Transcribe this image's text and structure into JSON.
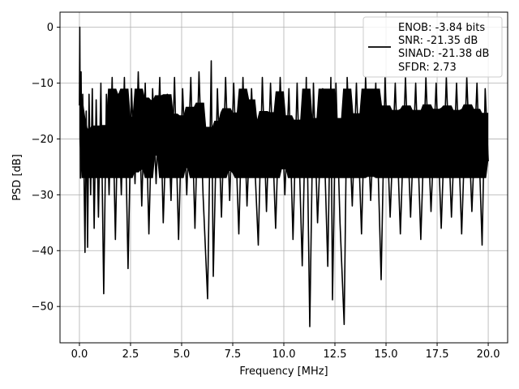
{
  "chart_data": {
    "type": "line",
    "xlabel": "Frequency [MHz]",
    "ylabel": "PSD [dB]",
    "xlim": [
      -0.95,
      20.95
    ],
    "ylim": [
      -56.5,
      2.7
    ],
    "x_ticks": [
      0.0,
      2.5,
      5.0,
      7.5,
      10.0,
      12.5,
      15.0,
      17.5,
      20.0
    ],
    "x_tick_labels": [
      "0.0",
      "2.5",
      "5.0",
      "7.5",
      "10.0",
      "12.5",
      "15.0",
      "17.5",
      "20.0"
    ],
    "y_ticks": [
      0,
      -10,
      -20,
      -30,
      -40,
      -50
    ],
    "y_tick_labels": [
      "0",
      "−10",
      "−20",
      "−30",
      "−40",
      "−50"
    ],
    "grid": true,
    "legend_position": "upper-right",
    "legend_lines": [
      "ENOB: -3.84 bits",
      "SNR: -21.35 dB",
      "SINAD: -21.38 dB",
      "SFDR: 2.73"
    ],
    "line_color": "#000000",
    "series": [
      {
        "points": [
          [
            0.0,
            -14.0
          ],
          [
            0.02,
            0.0
          ],
          [
            0.05,
            -27.0
          ],
          [
            0.08,
            -8.0
          ],
          [
            0.12,
            -25.0
          ],
          [
            0.16,
            -12.0
          ],
          [
            0.21,
            -22.0
          ],
          [
            0.27,
            -40.3
          ],
          [
            0.33,
            -15.0
          ],
          [
            0.4,
            -39.4
          ],
          [
            0.47,
            -12.0
          ],
          [
            0.55,
            -30.0
          ],
          [
            0.63,
            -11.0
          ],
          [
            0.72,
            -36.0
          ],
          [
            0.82,
            -13.0
          ],
          [
            0.93,
            -34.0
          ],
          [
            1.05,
            -10.0
          ],
          [
            1.19,
            -47.7
          ],
          [
            1.32,
            -12.0
          ],
          [
            1.45,
            -30.0
          ],
          [
            1.6,
            -9.0
          ],
          [
            1.76,
            -38.0
          ],
          [
            1.9,
            -12.0
          ],
          [
            2.05,
            -30.0
          ],
          [
            2.2,
            -9.0
          ],
          [
            2.38,
            -43.2
          ],
          [
            2.55,
            -11.0
          ],
          [
            2.72,
            -28.0
          ],
          [
            2.88,
            -8.0
          ],
          [
            3.05,
            -32.0
          ],
          [
            3.22,
            -10.0
          ],
          [
            3.4,
            -37.0
          ],
          [
            3.58,
            -11.0
          ],
          [
            3.75,
            -28.0
          ],
          [
            3.93,
            -9.0
          ],
          [
            4.1,
            -35.0
          ],
          [
            4.3,
            -12.0
          ],
          [
            4.48,
            -31.0
          ],
          [
            4.65,
            -9.0
          ],
          [
            4.85,
            -38.0
          ],
          [
            5.05,
            -11.0
          ],
          [
            5.25,
            -30.0
          ],
          [
            5.45,
            -9.0
          ],
          [
            5.65,
            -36.0
          ],
          [
            5.85,
            -8.0
          ],
          [
            6.05,
            -30.0
          ],
          [
            6.27,
            -48.6
          ],
          [
            6.45,
            -6.0
          ],
          [
            6.55,
            -44.6
          ],
          [
            6.75,
            -11.0
          ],
          [
            6.95,
            -34.0
          ],
          [
            7.15,
            -9.0
          ],
          [
            7.35,
            -31.0
          ],
          [
            7.55,
            -10.0
          ],
          [
            7.8,
            -37.0
          ],
          [
            8.0,
            -9.0
          ],
          [
            8.2,
            -32.0
          ],
          [
            8.42,
            -11.0
          ],
          [
            8.75,
            -39.0
          ],
          [
            8.95,
            -9.0
          ],
          [
            9.15,
            -33.0
          ],
          [
            9.35,
            -10.0
          ],
          [
            9.6,
            -36.0
          ],
          [
            9.82,
            -9.0
          ],
          [
            10.05,
            -30.0
          ],
          [
            10.25,
            -11.0
          ],
          [
            10.45,
            -38.0
          ],
          [
            10.65,
            -10.0
          ],
          [
            10.9,
            -42.7
          ],
          [
            11.1,
            -9.0
          ],
          [
            11.27,
            -53.6
          ],
          [
            11.45,
            -10.0
          ],
          [
            11.65,
            -35.0
          ],
          [
            11.9,
            -11.0
          ],
          [
            12.15,
            -42.8
          ],
          [
            12.3,
            -9.0
          ],
          [
            12.38,
            -48.8
          ],
          [
            12.55,
            -10.0
          ],
          [
            12.75,
            -35.0
          ],
          [
            12.95,
            -53.2
          ],
          [
            13.1,
            -9.0
          ],
          [
            13.35,
            -32.0
          ],
          [
            13.55,
            -10.0
          ],
          [
            13.8,
            -37.0
          ],
          [
            14.0,
            -9.0
          ],
          [
            14.25,
            -31.0
          ],
          [
            14.5,
            -10.0
          ],
          [
            14.76,
            -45.2
          ],
          [
            14.95,
            -9.0
          ],
          [
            15.2,
            -34.0
          ],
          [
            15.45,
            -10.0
          ],
          [
            15.7,
            -37.0
          ],
          [
            15.95,
            -9.0
          ],
          [
            16.2,
            -34.0
          ],
          [
            16.45,
            -10.0
          ],
          [
            16.7,
            -38.0
          ],
          [
            16.95,
            -9.0
          ],
          [
            17.2,
            -33.0
          ],
          [
            17.45,
            -10.0
          ],
          [
            17.7,
            -36.0
          ],
          [
            17.95,
            -9.0
          ],
          [
            18.2,
            -34.0
          ],
          [
            18.45,
            -10.0
          ],
          [
            18.7,
            -37.0
          ],
          [
            18.95,
            -9.0
          ],
          [
            19.2,
            -33.0
          ],
          [
            19.45,
            -10.0
          ],
          [
            19.7,
            -39.0
          ],
          [
            19.85,
            -11.0
          ],
          [
            20.0,
            -24.0
          ]
        ]
      }
    ]
  }
}
